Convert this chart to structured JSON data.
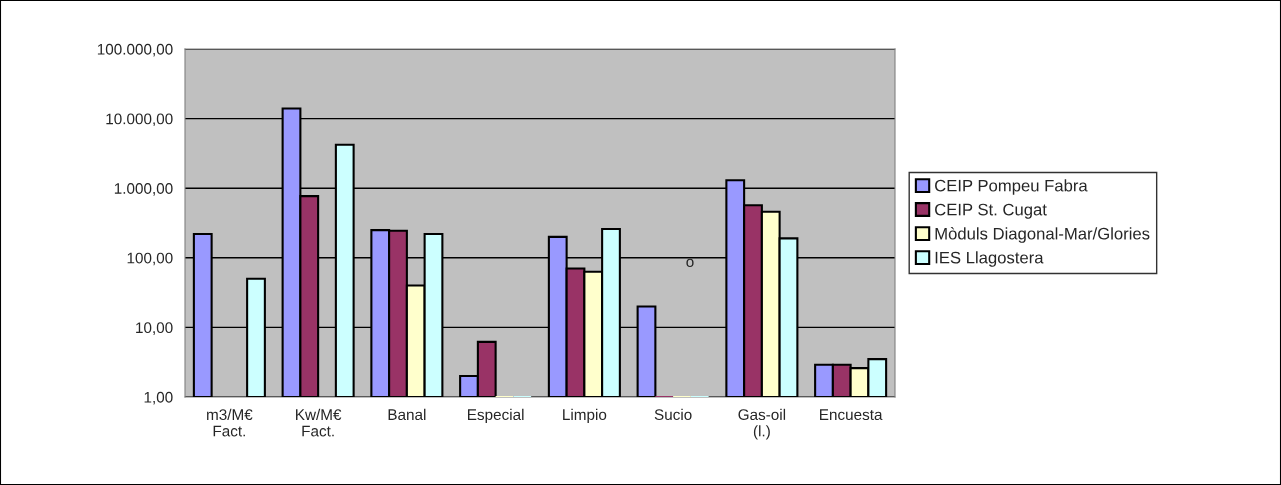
{
  "chart_data": {
    "type": "bar",
    "log": "y",
    "grid": "y",
    "legend": "right",
    "categories": [
      "m3/M€\nFact.",
      "Kw/M€\nFact.",
      "Banal",
      "Especial",
      "Limpio",
      "Sucio",
      "Gas-oil\n(l.)",
      "Encuesta"
    ],
    "series": [
      {
        "name": "CEIP Pompeu Fabra",
        "color": "#9999ff",
        "values": [
          220,
          14000,
          250,
          2,
          200,
          20,
          1300,
          2.9
        ]
      },
      {
        "name": "CEIP St. Cugat",
        "color": "#993366",
        "values": [
          null,
          770,
          245,
          6.2,
          70,
          1,
          570,
          2.9
        ]
      },
      {
        "name": "Mòduls Diagonal-Mar/Glories",
        "color": "#ffffcc",
        "values": [
          null,
          null,
          40,
          1,
          63,
          1,
          460,
          2.6
        ]
      },
      {
        "name": "IES Llagostera",
        "color": "#ccffff",
        "values": [
          50,
          4200,
          220,
          1,
          260,
          1,
          190,
          3.5
        ]
      }
    ],
    "ylim": [
      1,
      100000
    ],
    "yticks": [
      {
        "value": 1,
        "label": "1,00"
      },
      {
        "value": 10,
        "label": "10,00"
      },
      {
        "value": 100,
        "label": "100,00"
      },
      {
        "value": 1000,
        "label": "1.000,00"
      },
      {
        "value": 10000,
        "label": "10.000,00"
      },
      {
        "value": 100000,
        "label": "100.000,00"
      }
    ],
    "annotations": [
      "o"
    ]
  }
}
